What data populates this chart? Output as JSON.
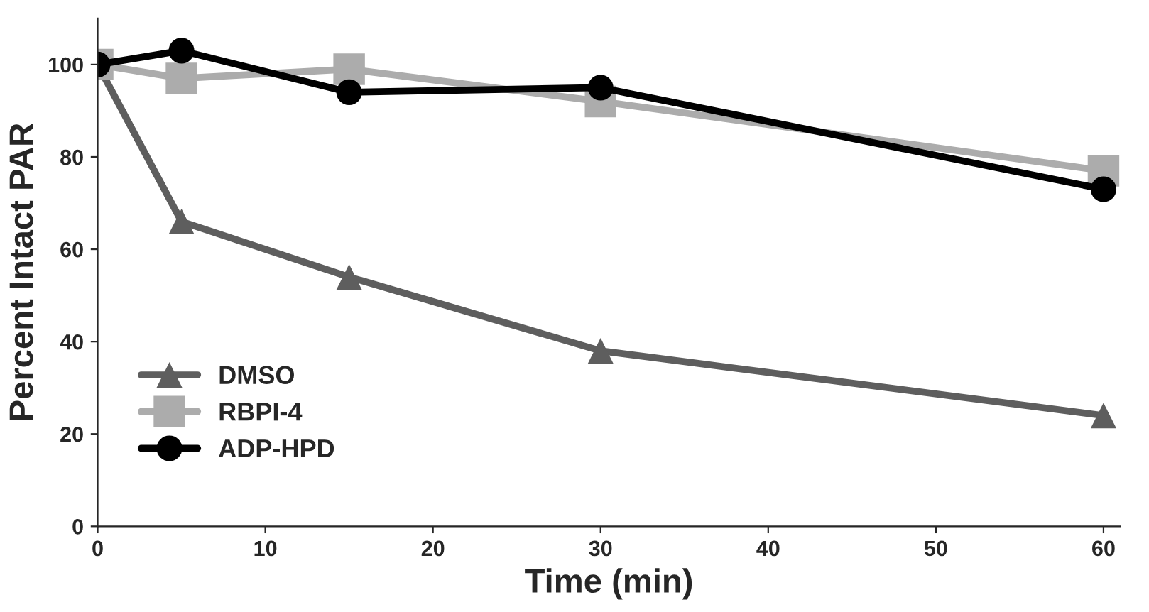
{
  "chart_data": {
    "type": "line",
    "xlabel": "Time (min)",
    "ylabel": "Percent Intact PAR",
    "xlim": [
      0,
      61
    ],
    "xticks": [
      0,
      10,
      20,
      30,
      40,
      50,
      60
    ],
    "ylim": [
      0,
      110
    ],
    "yticks": [
      0,
      20,
      40,
      60,
      80,
      100
    ],
    "grid": false,
    "legend": "bottom left",
    "line_style": "solid",
    "series": [
      {
        "name": "DMSO",
        "color": "#5e5e5e",
        "marker": "triangle",
        "x": [
          0,
          5,
          15,
          30,
          60
        ],
        "values": [
          100,
          66,
          54,
          38,
          24
        ]
      },
      {
        "name": "RBPI-4",
        "color": "#acacac",
        "marker": "square",
        "x": [
          0,
          5,
          15,
          30,
          60
        ],
        "values": [
          100,
          97,
          99,
          92,
          77
        ]
      },
      {
        "name": "ADP-HPD",
        "color": "#000000",
        "marker": "circle",
        "x": [
          0,
          5,
          15,
          30,
          60
        ],
        "values": [
          100,
          103,
          94,
          95,
          73
        ]
      }
    ]
  }
}
